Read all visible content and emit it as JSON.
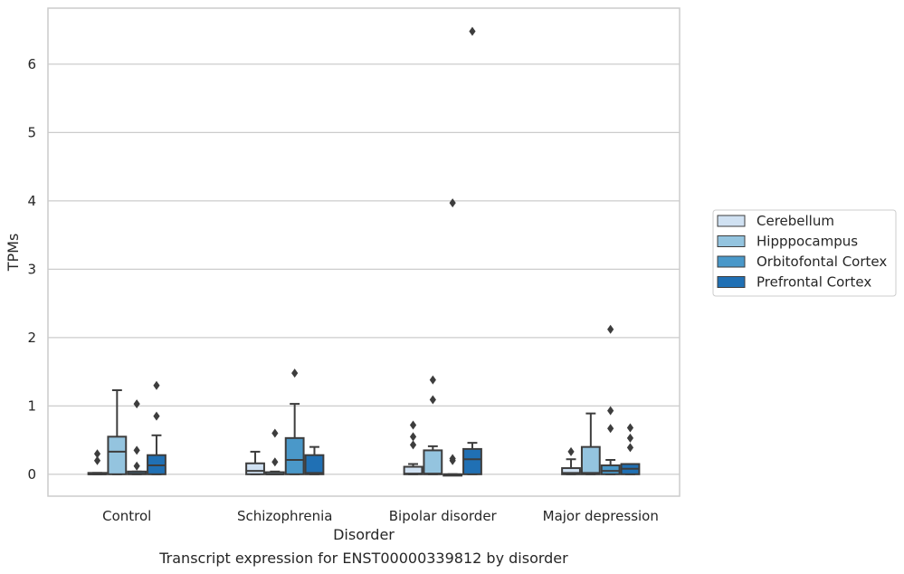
{
  "chart_data": {
    "type": "box",
    "title": "Transcript expression for ENST00000339812 by disorder",
    "xlabel": "Disorder",
    "ylabel": "TPMs",
    "ylim": [
      -0.32,
      6.82
    ],
    "yticks": [
      0,
      1,
      2,
      3,
      4,
      5,
      6
    ],
    "grid": true,
    "legend_position": "right",
    "categories": [
      "Control",
      "Schizophrenia",
      "Bipolar disorder",
      "Major depression"
    ],
    "series": [
      {
        "name": "Cerebellum",
        "color": "#d0e1f2",
        "boxes": [
          {
            "q1": 0.0,
            "median": 0.0,
            "q3": 0.02,
            "whisker_low": 0.0,
            "whisker_high": 0.02,
            "outliers": [
              0.3,
              0.2
            ]
          },
          {
            "q1": 0.0,
            "median": 0.05,
            "q3": 0.16,
            "whisker_low": 0.0,
            "whisker_high": 0.33,
            "outliers": []
          },
          {
            "q1": 0.0,
            "median": 0.01,
            "q3": 0.11,
            "whisker_low": 0.0,
            "whisker_high": 0.15,
            "outliers": [
              0.72,
              0.55,
              0.43
            ]
          },
          {
            "q1": 0.0,
            "median": 0.02,
            "q3": 0.09,
            "whisker_low": 0.0,
            "whisker_high": 0.22,
            "outliers": [
              0.33
            ]
          }
        ]
      },
      {
        "name": "Hipppocampus",
        "color": "#94c4df",
        "boxes": [
          {
            "q1": 0.0,
            "median": 0.33,
            "q3": 0.55,
            "whisker_low": 0.0,
            "whisker_high": 1.23,
            "outliers": []
          },
          {
            "q1": 0.0,
            "median": 0.0,
            "q3": 0.03,
            "whisker_low": 0.0,
            "whisker_high": 0.04,
            "outliers": [
              0.6,
              0.18
            ]
          },
          {
            "q1": 0.0,
            "median": 0.01,
            "q3": 0.35,
            "whisker_low": 0.0,
            "whisker_high": 0.41,
            "outliers": [
              1.38,
              1.09
            ]
          },
          {
            "q1": 0.0,
            "median": 0.02,
            "q3": 0.4,
            "whisker_low": 0.0,
            "whisker_high": 0.89,
            "outliers": []
          }
        ]
      },
      {
        "name": "Orbitofontal Cortex",
        "color": "#4a98c9",
        "boxes": [
          {
            "q1": 0.0,
            "median": 0.01,
            "q3": 0.04,
            "whisker_low": 0.0,
            "whisker_high": 0.04,
            "outliers": [
              1.03,
              0.35,
              0.12
            ]
          },
          {
            "q1": 0.0,
            "median": 0.21,
            "q3": 0.53,
            "whisker_low": 0.0,
            "whisker_high": 1.03,
            "outliers": [
              1.48
            ]
          },
          {
            "q1": 0.0,
            "median": 0.0,
            "q3": 0.0,
            "whisker_low": 0.0,
            "whisker_high": 0.0,
            "outliers": [
              3.97,
              0.23,
              0.2
            ]
          },
          {
            "q1": 0.0,
            "median": 0.05,
            "q3": 0.13,
            "whisker_low": 0.0,
            "whisker_high": 0.21,
            "outliers": [
              2.12,
              0.93,
              0.67
            ]
          }
        ]
      },
      {
        "name": "Prefrontal Cortex",
        "color": "#2070b4",
        "boxes": [
          {
            "q1": 0.0,
            "median": 0.13,
            "q3": 0.28,
            "whisker_low": 0.0,
            "whisker_high": 0.57,
            "outliers": [
              1.3,
              0.85
            ]
          },
          {
            "q1": 0.0,
            "median": 0.02,
            "q3": 0.28,
            "whisker_low": 0.0,
            "whisker_high": 0.4,
            "outliers": []
          },
          {
            "q1": 0.0,
            "median": 0.22,
            "q3": 0.37,
            "whisker_low": 0.0,
            "whisker_high": 0.46,
            "outliers": [
              6.48
            ]
          },
          {
            "q1": 0.0,
            "median": 0.08,
            "q3": 0.15,
            "whisker_low": 0.0,
            "whisker_high": 0.15,
            "outliers": [
              0.68,
              0.53,
              0.39
            ]
          }
        ]
      }
    ]
  }
}
